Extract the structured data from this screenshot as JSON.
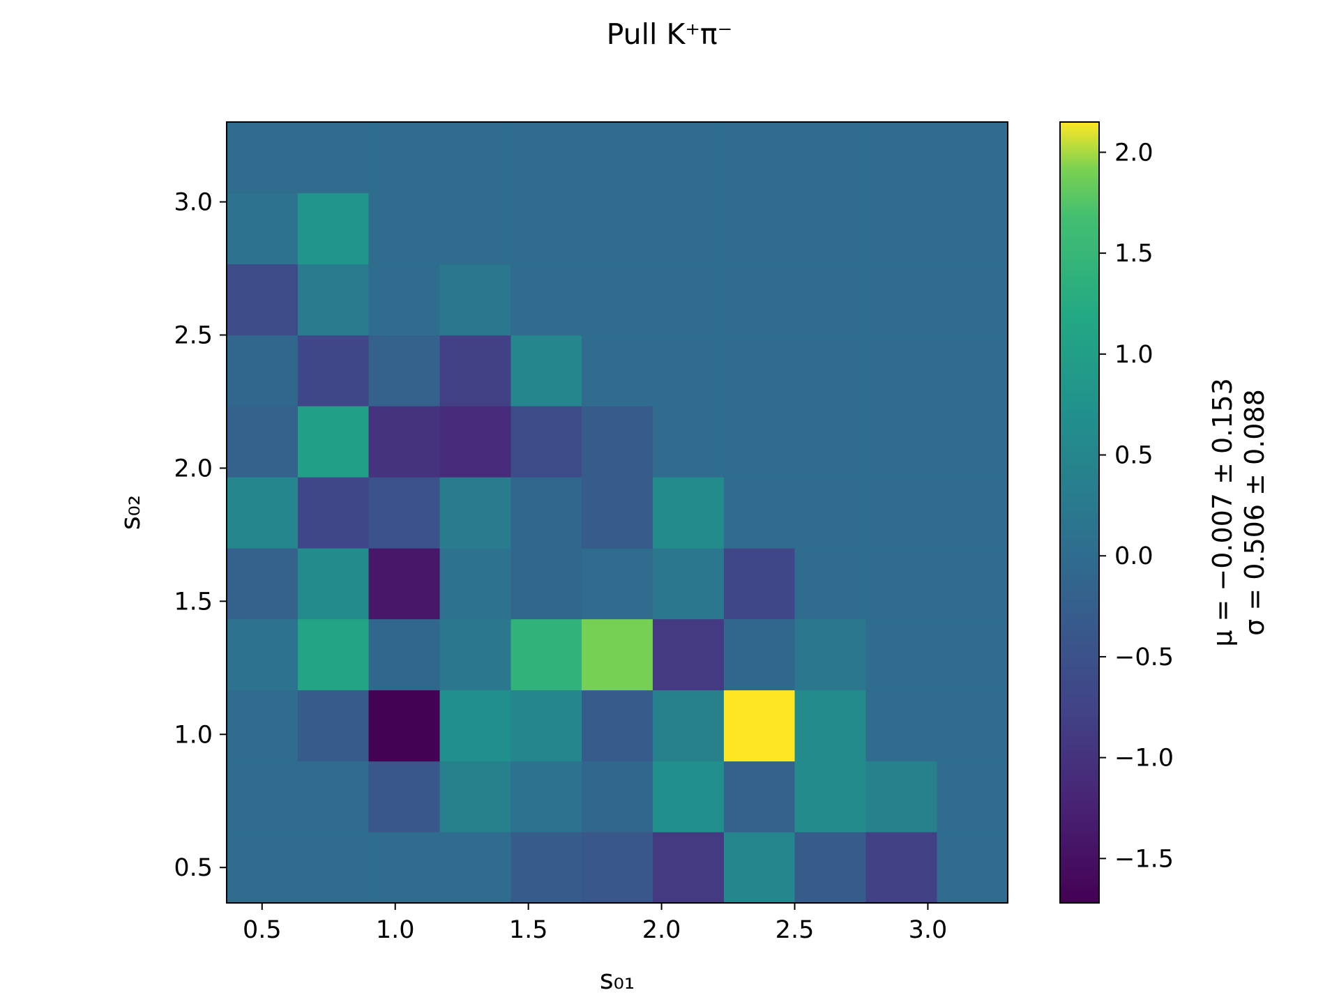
{
  "chart_data": {
    "type": "heatmap",
    "title": "Pull K⁺π⁻",
    "xlabel": "s₀₁",
    "ylabel": "s₀₂",
    "x_range": [
      0.367,
      3.3
    ],
    "y_range": [
      0.367,
      3.3
    ],
    "x_bin_edges": [
      0.367,
      0.634,
      0.9,
      1.167,
      1.434,
      1.7,
      1.967,
      2.234,
      2.5,
      2.767,
      3.034,
      3.3
    ],
    "y_bin_edges": [
      0.367,
      0.634,
      0.9,
      1.167,
      1.434,
      1.7,
      1.967,
      2.234,
      2.5,
      2.767,
      3.034,
      3.3
    ],
    "x_ticks": [
      "0.5",
      "1.0",
      "1.5",
      "2.0",
      "2.5",
      "3.0"
    ],
    "y_ticks": [
      "0.5",
      "1.0",
      "1.5",
      "2.0",
      "2.5",
      "3.0"
    ],
    "values_rows_bottom_to_top": [
      [
        0.0,
        0.0,
        0.0,
        0.0,
        -0.3,
        -0.4,
        -0.9,
        0.5,
        -0.3,
        -0.8,
        0.0
      ],
      [
        0.0,
        0.0,
        -0.4,
        0.4,
        0.1,
        -0.1,
        0.7,
        -0.2,
        0.6,
        0.4,
        0.0
      ],
      [
        0.0,
        -0.3,
        -1.7,
        0.7,
        0.5,
        -0.3,
        0.4,
        2.15,
        0.6,
        0.0,
        0.0
      ],
      [
        0.1,
        1.1,
        -0.1,
        0.2,
        1.4,
        1.9,
        -0.9,
        -0.1,
        0.2,
        0.0,
        0.0
      ],
      [
        -0.2,
        0.6,
        -1.4,
        0.1,
        -0.1,
        0.0,
        0.2,
        -0.7,
        0.0,
        0.0,
        0.0
      ],
      [
        0.5,
        -0.7,
        -0.5,
        0.3,
        -0.1,
        -0.3,
        0.6,
        0.0,
        0.0,
        0.0,
        0.0
      ],
      [
        -0.2,
        1.0,
        -1.0,
        -1.1,
        -0.6,
        -0.3,
        0.0,
        0.0,
        0.0,
        0.0,
        0.0
      ],
      [
        -0.1,
        -0.7,
        -0.2,
        -0.8,
        0.5,
        0.0,
        0.0,
        0.0,
        0.0,
        0.0,
        0.0
      ],
      [
        -0.6,
        0.3,
        0.0,
        0.2,
        0.0,
        0.0,
        0.0,
        0.0,
        0.0,
        0.0,
        0.0
      ],
      [
        0.1,
        0.8,
        0.0,
        0.0,
        0.0,
        0.0,
        0.0,
        0.0,
        0.0,
        0.0,
        0.0
      ],
      [
        0.0,
        0.0,
        0.0,
        0.0,
        0.0,
        0.0,
        0.0,
        0.0,
        0.0,
        0.0,
        0.0
      ]
    ],
    "colorbar": {
      "colormap": "viridis",
      "range": [
        -1.72,
        2.15
      ],
      "ticks": [
        "−1.5",
        "−1.0",
        "−0.5",
        "0.0",
        "0.5",
        "1.0",
        "1.5",
        "2.0"
      ],
      "tick_values": [
        -1.5,
        -1.0,
        -0.5,
        0.0,
        0.5,
        1.0,
        1.5,
        2.0
      ]
    },
    "annotations": {
      "mu": "μ = −0.007 ± 0.153",
      "sigma": "σ = 0.506 ± 0.088"
    }
  }
}
